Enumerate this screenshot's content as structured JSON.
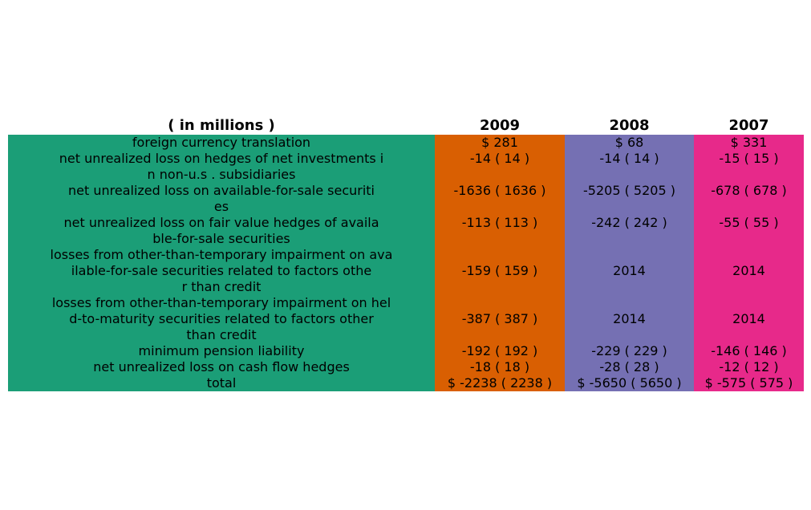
{
  "chart_data": {
    "type": "table",
    "colors": [
      "#1b9e77",
      "#d95f02",
      "#7570b3",
      "#e7298a"
    ],
    "columns": [
      "( in millions )",
      "2009",
      "2008",
      "2007"
    ],
    "rows": [
      {
        "label": "foreign currency translation",
        "values": [
          "$ 281",
          "$ 68",
          "$ 331"
        ]
      },
      {
        "label": "net unrealized loss on hedges of net investments i\nn non-u.s . subsidiaries",
        "values": [
          "-14 ( 14 )",
          "-14 ( 14 )",
          "-15 ( 15 )"
        ]
      },
      {
        "label": "net unrealized loss on available-for-sale securiti\nes",
        "values": [
          "-1636 ( 1636 )",
          "-5205 ( 5205 )",
          "-678 ( 678 )"
        ]
      },
      {
        "label": "net unrealized loss on fair value hedges of availa\nble-for-sale securities",
        "values": [
          "-113 ( 113 )",
          "-242 ( 242 )",
          "-55 ( 55 )"
        ]
      },
      {
        "label": "losses from other-than-temporary impairment on ava\nilable-for-sale securities related to factors othe\nr than credit",
        "values": [
          "-159 ( 159 )",
          "2014",
          "2014"
        ]
      },
      {
        "label": "losses from other-than-temporary impairment on hel\nd-to-maturity securities related to factors other\nthan credit",
        "values": [
          "-387 ( 387 )",
          "2014",
          "2014"
        ]
      },
      {
        "label": "minimum pension liability",
        "values": [
          "-192 ( 192 )",
          "-229 ( 229 )",
          "-146 ( 146 )"
        ]
      },
      {
        "label": "net unrealized loss on cash flow hedges",
        "values": [
          "-18 ( 18 )",
          "-28 ( 28 )",
          "-12 ( 12 )"
        ]
      },
      {
        "label": "total",
        "values": [
          "$ -2238 ( 2238 )",
          "$ -5650 ( 5650 )",
          "$ -575 ( 575 )"
        ]
      }
    ]
  }
}
